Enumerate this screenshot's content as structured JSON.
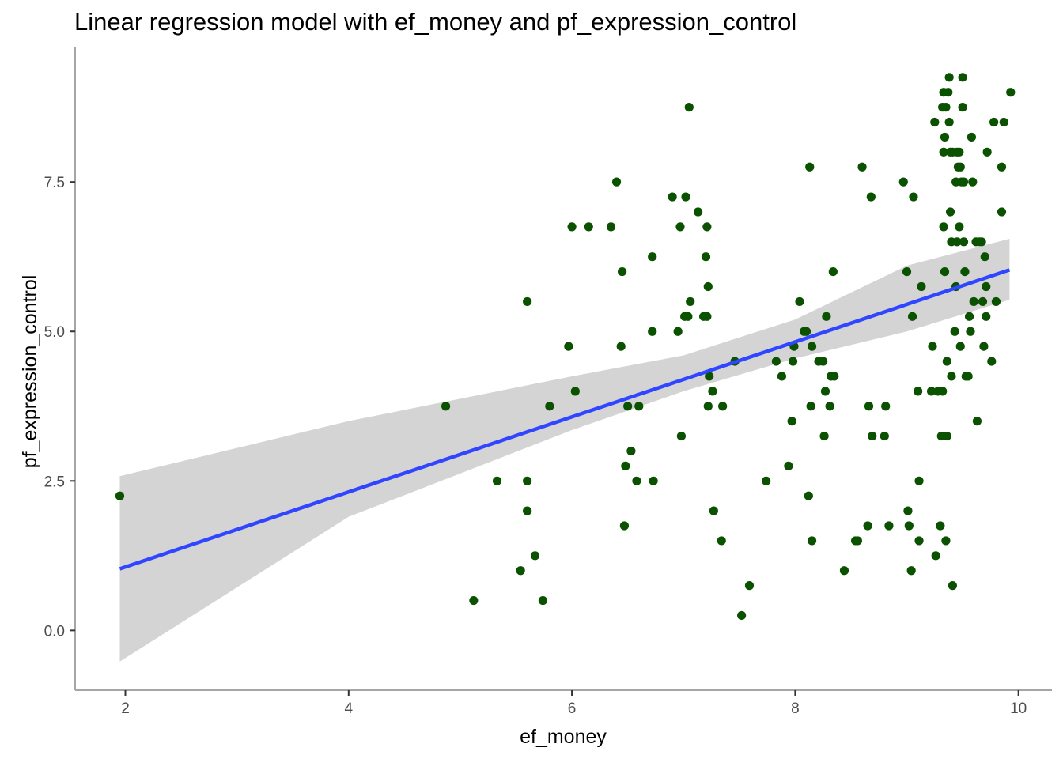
{
  "chart_data": {
    "type": "scatter",
    "title": "Linear regression model with ef_money and pf_expression_control",
    "xlabel": "ef_money",
    "ylabel": "pf_expression_control",
    "xlim": [
      1.55,
      10.3
    ],
    "ylim": [
      -1.0,
      9.75
    ],
    "x_ticks": [
      2,
      4,
      6,
      8,
      10
    ],
    "x_tick_labels": [
      "2",
      "4",
      "6",
      "8",
      "10"
    ],
    "y_ticks": [
      0.0,
      2.5,
      5.0,
      7.5
    ],
    "y_tick_labels": [
      "0.0",
      "2.5",
      "5.0",
      "7.5"
    ],
    "grid": false,
    "colors": {
      "points": "#0a5200",
      "fit_line": "#3045ff",
      "confidence_band": "#cfcfcf",
      "axis": "#a6a6a6"
    },
    "regression_line": {
      "x": [
        1.95,
        9.92
      ],
      "y": [
        1.03,
        6.03
      ]
    },
    "confidence_band": {
      "x": [
        1.95,
        4.0,
        6.0,
        7.0,
        8.0,
        9.0,
        9.92
      ],
      "lower": [
        -0.52,
        1.9,
        3.35,
        4.0,
        4.55,
        5.0,
        5.53
      ],
      "upper": [
        2.58,
        3.5,
        4.25,
        4.6,
        5.2,
        6.1,
        6.55
      ]
    },
    "points": [
      [
        1.95,
        2.25
      ],
      [
        4.87,
        3.75
      ],
      [
        5.12,
        0.5
      ],
      [
        5.33,
        2.5
      ],
      [
        5.54,
        1.0
      ],
      [
        5.6,
        5.5
      ],
      [
        5.6,
        2.5
      ],
      [
        5.6,
        2.0
      ],
      [
        5.67,
        1.25
      ],
      [
        5.74,
        0.5
      ],
      [
        5.8,
        3.75
      ],
      [
        5.97,
        4.75
      ],
      [
        6.0,
        6.75
      ],
      [
        6.03,
        4.0
      ],
      [
        6.15,
        6.75
      ],
      [
        6.35,
        6.75
      ],
      [
        6.4,
        7.5
      ],
      [
        6.44,
        4.75
      ],
      [
        6.45,
        6.0
      ],
      [
        6.47,
        1.75
      ],
      [
        6.48,
        2.75
      ],
      [
        6.5,
        3.75
      ],
      [
        6.53,
        3.0
      ],
      [
        6.58,
        2.5
      ],
      [
        6.6,
        3.75
      ],
      [
        6.72,
        5.0
      ],
      [
        6.72,
        6.25
      ],
      [
        6.73,
        2.5
      ],
      [
        6.9,
        7.25
      ],
      [
        6.95,
        5.0
      ],
      [
        6.97,
        6.75
      ],
      [
        6.98,
        3.25
      ],
      [
        7.01,
        5.25
      ],
      [
        7.02,
        7.25
      ],
      [
        7.04,
        5.25
      ],
      [
        7.05,
        8.75
      ],
      [
        7.06,
        5.5
      ],
      [
        7.13,
        7.0
      ],
      [
        7.18,
        5.25
      ],
      [
        7.2,
        6.25
      ],
      [
        7.21,
        5.25
      ],
      [
        7.21,
        6.75
      ],
      [
        7.22,
        3.75
      ],
      [
        7.22,
        5.75
      ],
      [
        7.23,
        4.25
      ],
      [
        7.26,
        4.0
      ],
      [
        7.27,
        2.0
      ],
      [
        7.34,
        1.5
      ],
      [
        7.35,
        3.75
      ],
      [
        7.46,
        4.5
      ],
      [
        7.52,
        0.25
      ],
      [
        7.59,
        0.75
      ],
      [
        7.74,
        2.5
      ],
      [
        7.83,
        4.5
      ],
      [
        7.88,
        4.25
      ],
      [
        7.94,
        2.75
      ],
      [
        7.97,
        3.5
      ],
      [
        7.98,
        4.5
      ],
      [
        7.99,
        4.75
      ],
      [
        8.04,
        5.5
      ],
      [
        8.08,
        5.0
      ],
      [
        8.1,
        5.0
      ],
      [
        8.12,
        2.25
      ],
      [
        8.13,
        7.75
      ],
      [
        8.14,
        3.75
      ],
      [
        8.15,
        1.5
      ],
      [
        8.15,
        4.75
      ],
      [
        8.21,
        4.5
      ],
      [
        8.25,
        4.5
      ],
      [
        8.26,
        3.25
      ],
      [
        8.27,
        4.0
      ],
      [
        8.28,
        5.25
      ],
      [
        8.31,
        3.75
      ],
      [
        8.32,
        4.25
      ],
      [
        8.34,
        6.0
      ],
      [
        8.35,
        4.25
      ],
      [
        8.44,
        1.0
      ],
      [
        8.54,
        1.5
      ],
      [
        8.56,
        1.5
      ],
      [
        8.6,
        7.75
      ],
      [
        8.65,
        1.75
      ],
      [
        8.66,
        3.75
      ],
      [
        8.68,
        7.25
      ],
      [
        8.69,
        3.25
      ],
      [
        8.8,
        3.25
      ],
      [
        8.81,
        3.75
      ],
      [
        8.84,
        1.75
      ],
      [
        8.97,
        7.5
      ],
      [
        9.0,
        6.0
      ],
      [
        9.01,
        2.0
      ],
      [
        9.02,
        1.75
      ],
      [
        9.04,
        1.0
      ],
      [
        9.05,
        5.25
      ],
      [
        9.06,
        7.25
      ],
      [
        9.1,
        4.0
      ],
      [
        9.11,
        1.5
      ],
      [
        9.11,
        2.5
      ],
      [
        9.13,
        5.75
      ],
      [
        9.22,
        4.0
      ],
      [
        9.23,
        4.75
      ],
      [
        9.25,
        8.5
      ],
      [
        9.26,
        1.25
      ],
      [
        9.28,
        4.0
      ],
      [
        9.3,
        1.75
      ],
      [
        9.31,
        3.25
      ],
      [
        9.32,
        8.75
      ],
      [
        9.32,
        4.0
      ],
      [
        9.33,
        9.0
      ],
      [
        9.33,
        6.75
      ],
      [
        9.33,
        8.0
      ],
      [
        9.34,
        8.25
      ],
      [
        9.34,
        6.0
      ],
      [
        9.35,
        1.5
      ],
      [
        9.35,
        8.75
      ],
      [
        9.36,
        3.25
      ],
      [
        9.36,
        4.5
      ],
      [
        9.37,
        9.0
      ],
      [
        9.38,
        8.5
      ],
      [
        9.38,
        9.25
      ],
      [
        9.39,
        7.0
      ],
      [
        9.39,
        8.0
      ],
      [
        9.4,
        4.25
      ],
      [
        9.4,
        6.5
      ],
      [
        9.41,
        8.0
      ],
      [
        9.41,
        0.75
      ],
      [
        9.43,
        5.0
      ],
      [
        9.44,
        7.5
      ],
      [
        9.44,
        5.75
      ],
      [
        9.45,
        8.0
      ],
      [
        9.45,
        6.5
      ],
      [
        9.46,
        7.75
      ],
      [
        9.47,
        8.0
      ],
      [
        9.47,
        6.75
      ],
      [
        9.48,
        4.75
      ],
      [
        9.48,
        7.75
      ],
      [
        9.49,
        7.5
      ],
      [
        9.5,
        9.25
      ],
      [
        9.5,
        8.75
      ],
      [
        9.51,
        7.5
      ],
      [
        9.51,
        6.5
      ],
      [
        9.52,
        6.0
      ],
      [
        9.53,
        4.25
      ],
      [
        9.55,
        4.25
      ],
      [
        9.56,
        5.25
      ],
      [
        9.57,
        5.0
      ],
      [
        9.58,
        8.25
      ],
      [
        9.59,
        7.5
      ],
      [
        9.6,
        5.5
      ],
      [
        9.62,
        6.5
      ],
      [
        9.63,
        3.5
      ],
      [
        9.65,
        6.5
      ],
      [
        9.67,
        6.5
      ],
      [
        9.68,
        5.5
      ],
      [
        9.69,
        4.75
      ],
      [
        9.7,
        6.25
      ],
      [
        9.71,
        5.75
      ],
      [
        9.71,
        5.25
      ],
      [
        9.72,
        8.0
      ],
      [
        9.76,
        4.5
      ],
      [
        9.78,
        8.5
      ],
      [
        9.8,
        5.5
      ],
      [
        9.85,
        7.0
      ],
      [
        9.85,
        7.75
      ],
      [
        9.87,
        8.5
      ],
      [
        9.93,
        9.0
      ]
    ]
  }
}
